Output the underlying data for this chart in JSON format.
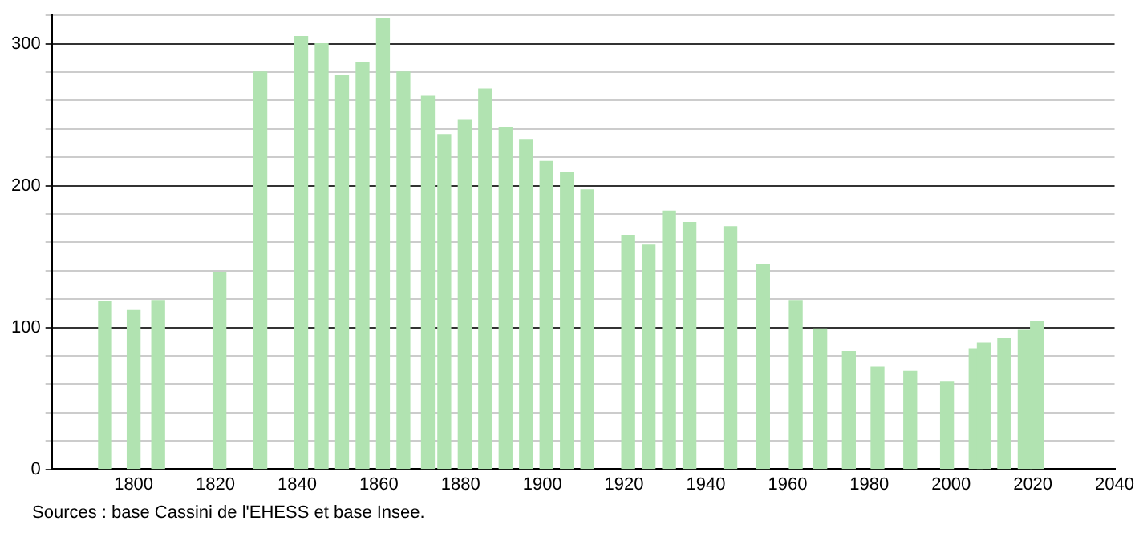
{
  "chart_data": {
    "type": "bar",
    "x": [
      1793,
      1800,
      1806,
      1821,
      1831,
      1841,
      1846,
      1851,
      1856,
      1861,
      1866,
      1872,
      1876,
      1881,
      1886,
      1891,
      1896,
      1901,
      1906,
      1911,
      1921,
      1926,
      1931,
      1936,
      1946,
      1954,
      1962,
      1968,
      1975,
      1982,
      1990,
      1999,
      2006,
      2008,
      2013,
      2018,
      2021
    ],
    "values": [
      118,
      112,
      119,
      139,
      280,
      305,
      300,
      278,
      287,
      318,
      280,
      263,
      236,
      246,
      268,
      241,
      232,
      217,
      209,
      197,
      165,
      158,
      182,
      174,
      171,
      144,
      119,
      99,
      83,
      72,
      69,
      62,
      85,
      89,
      92,
      98,
      104
    ],
    "color": "#b1e3b1",
    "xlim": [
      1780,
      2040
    ],
    "xticks": [
      1800,
      1820,
      1840,
      1860,
      1880,
      1900,
      1920,
      1940,
      1960,
      1980,
      2000,
      2020,
      2040
    ],
    "ylim": [
      0,
      320
    ],
    "yticks": [
      0,
      {
        "value": 20,
        "label": null
      },
      {
        "value": 40,
        "label": null
      },
      {
        "value": 60,
        "label": null
      },
      {
        "value": 80,
        "label": null
      },
      100,
      {
        "value": 120,
        "label": null
      },
      {
        "value": 140,
        "label": null
      },
      {
        "value": 160,
        "label": null
      },
      {
        "value": 180,
        "label": null
      },
      200,
      {
        "value": 220,
        "label": null
      },
      {
        "value": 240,
        "label": null
      },
      {
        "value": 260,
        "label": null
      },
      {
        "value": 280,
        "label": null
      },
      300,
      {
        "value": 320,
        "label": null
      }
    ],
    "grid": "y",
    "legend": false,
    "annotations": [
      "Sources : base Cassini de l'EHESS et base Insee."
    ]
  }
}
